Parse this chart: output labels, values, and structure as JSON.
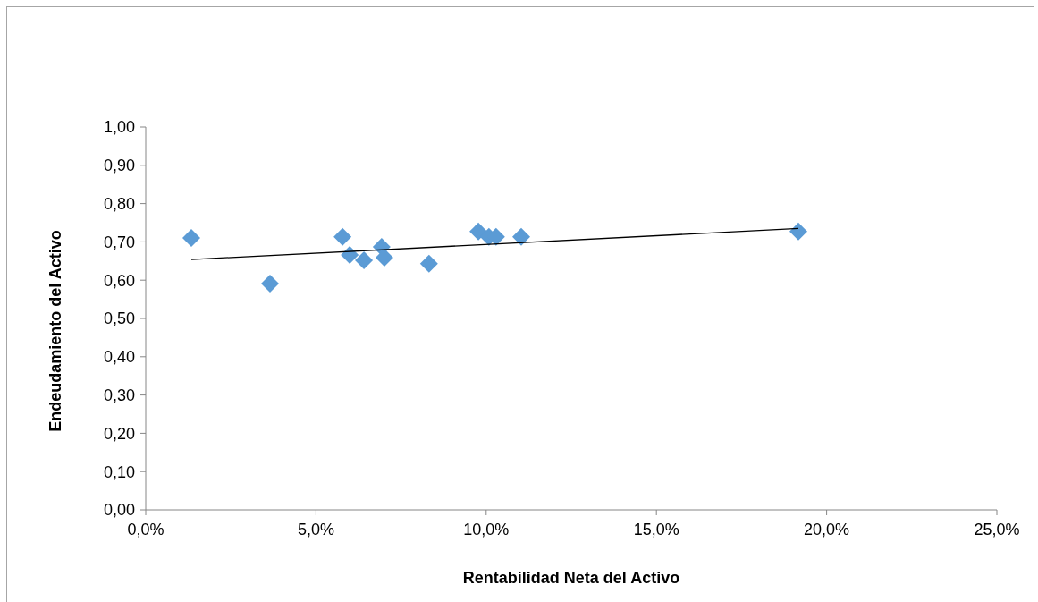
{
  "chart_data": {
    "type": "scatter",
    "xlabel": "Rentabilidad Neta del Activo",
    "ylabel": "Endeudamiento del Activo",
    "x": [
      0.0134,
      0.0365,
      0.0578,
      0.0599,
      0.0641,
      0.0693,
      0.0701,
      0.0832,
      0.0977,
      0.1008,
      0.1029,
      0.1103,
      0.1917
    ],
    "series": [
      {
        "color": "#5b9bd5",
        "marker": "diamond",
        "values": [
          0.71,
          0.591,
          0.713,
          0.666,
          0.652,
          0.687,
          0.659,
          0.643,
          0.727,
          0.713,
          0.713,
          0.713,
          0.727
        ]
      },
      {
        "type": "line",
        "marker": "none",
        "color": "#000000",
        "x": [
          0.0134,
          0.1917
        ],
        "values": [
          0.654,
          0.735
        ]
      }
    ],
    "xlim": [
      0,
      0.25
    ],
    "xticks": [
      {
        "value": 0,
        "label": "0,0%"
      },
      {
        "value": 0.05,
        "label": "5,0%"
      },
      {
        "value": 0.1,
        "label": "10,0%"
      },
      {
        "value": 0.15,
        "label": "15,0%"
      },
      {
        "value": 0.2,
        "label": "20,0%"
      },
      {
        "value": 0.25,
        "label": "25,0%"
      }
    ],
    "ylim": [
      0,
      1
    ],
    "yticks": [
      {
        "value": 0,
        "label": "0,00"
      },
      {
        "value": 0.1,
        "label": "0,10"
      },
      {
        "value": 0.2,
        "label": "0,20"
      },
      {
        "value": 0.3,
        "label": "0,30"
      },
      {
        "value": 0.4,
        "label": "0,40"
      },
      {
        "value": 0.5,
        "label": "0,50"
      },
      {
        "value": 0.6,
        "label": "0,60"
      },
      {
        "value": 0.7,
        "label": "0,70"
      },
      {
        "value": 0.8,
        "label": "0,80"
      },
      {
        "value": 0.9,
        "label": "0,90"
      },
      {
        "value": 1,
        "label": "1,00"
      }
    ]
  }
}
